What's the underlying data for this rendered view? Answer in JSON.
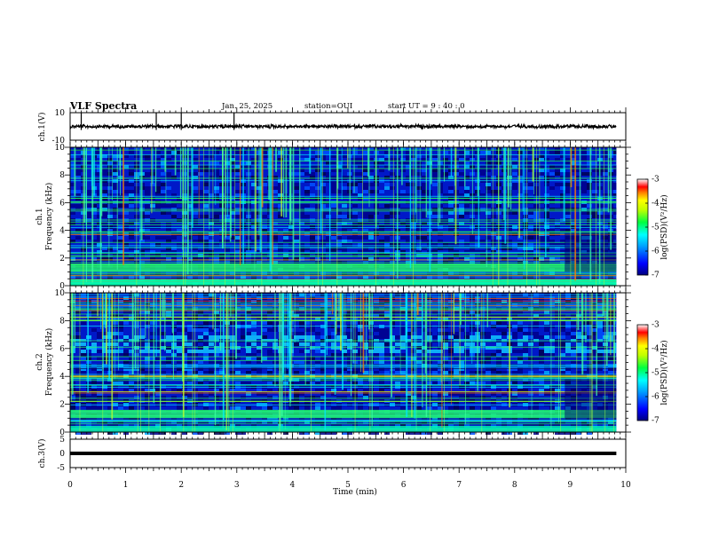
{
  "header": {
    "title": "VLF Spectra",
    "date": "Jan. 25, 2025",
    "station": "station=OUI",
    "start": "start UT =  9 : 40 : 0"
  },
  "colors": {
    "colormap": [
      "#000080",
      "#0000ff",
      "#0080ff",
      "#00ffff",
      "#00ff80",
      "#80ff00",
      "#ffff00",
      "#ff8000",
      "#ff0000",
      "#ffffff"
    ]
  },
  "chart_data": [
    {
      "type": "line",
      "id": "ch1_waveform",
      "ylabel": "ch.1(V)",
      "ylim": [
        -10,
        10
      ],
      "yticks": [
        "10",
        "-10"
      ],
      "xlim": [
        0,
        10
      ],
      "baseline_v": 0,
      "spike_times_min": [
        0.2,
        1.55,
        2.0,
        2.95
      ]
    },
    {
      "type": "heatmap",
      "id": "ch1_spectrogram",
      "ylabel": "ch.1\nFrequency (kHz)",
      "ylabel_line1": "ch.1",
      "ylabel_line2": "Frequency (kHz)",
      "ylim": [
        0,
        10
      ],
      "yticks": [
        "0",
        "2",
        "4",
        "6",
        "8",
        "10"
      ],
      "xlim": [
        0,
        10
      ],
      "colorbar": {
        "label": "log(PSD)(V²/Hz)",
        "range": [
          -7,
          -3
        ],
        "ticks": [
          "-3",
          "-4",
          "-5",
          "-6",
          "-7"
        ]
      }
    },
    {
      "type": "heatmap",
      "id": "ch2_spectrogram",
      "ylabel": "ch.2\nFrequency (kHz)",
      "ylabel_line1": "ch.2",
      "ylabel_line2": "Frequency (kHz)",
      "ylim": [
        0,
        10
      ],
      "yticks": [
        "0",
        "2",
        "4",
        "6",
        "8",
        "10"
      ],
      "xlim": [
        0,
        10
      ],
      "colorbar": {
        "label": "log(PSD)(V²/Hz)",
        "range": [
          -7,
          -3
        ],
        "ticks": [
          "-3",
          "-4",
          "-5",
          "-6",
          "-7"
        ]
      }
    },
    {
      "type": "line",
      "id": "ch3_waveform",
      "ylabel": "ch.3(V)",
      "ylim": [
        -5,
        5
      ],
      "yticks": [
        "5",
        "0",
        "-5"
      ],
      "xlim": [
        0,
        10
      ],
      "baseline_v": 0
    }
  ],
  "xaxis": {
    "label": "Time (min)",
    "ticks": [
      "0",
      "1",
      "2",
      "3",
      "4",
      "5",
      "6",
      "7",
      "8",
      "9",
      "10"
    ],
    "data_end_min": 9.83
  }
}
